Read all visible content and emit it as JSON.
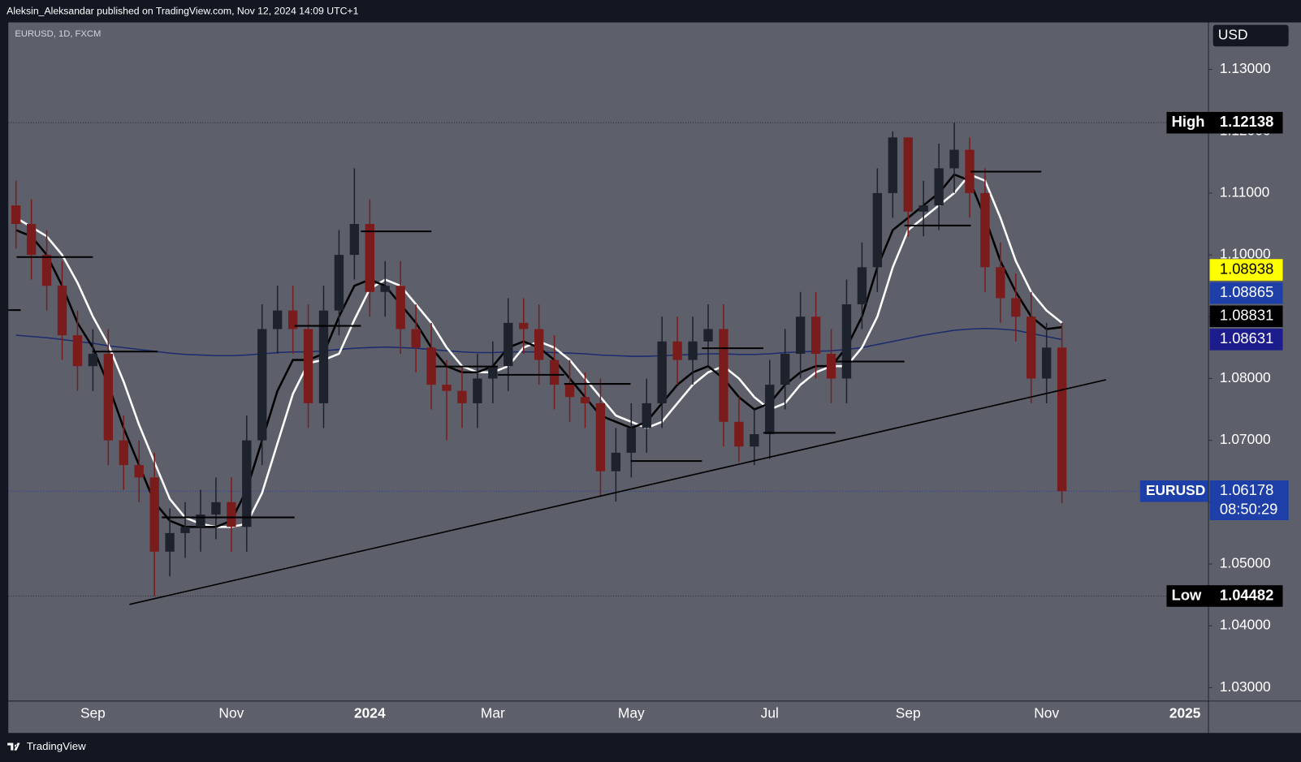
{
  "header": "Aleksin_Aleksandar published on TradingView.com, Nov 12, 2024 14:09 UTC+1",
  "footer": "TradingView",
  "chart_data": {
    "type": "candlestick",
    "symbol": "EURUSD, 1D, FXCM",
    "currency": "USD",
    "up_color": "#1e222d",
    "down_color": "#7a1c1c",
    "categories": [
      null,
      null,
      null,
      null,
      null,
      "Sep",
      null,
      null,
      null,
      null,
      null,
      null,
      null,
      null,
      "Nov",
      null,
      null,
      null,
      null,
      null,
      null,
      null,
      null,
      "2024",
      null,
      null,
      null,
      null,
      null,
      null,
      null,
      "Mar",
      null,
      null,
      null,
      null,
      null,
      null,
      null,
      null,
      "May",
      null,
      null,
      null,
      null,
      null,
      null,
      null,
      null,
      "Jul",
      null,
      null,
      null,
      null,
      null,
      null,
      null,
      null,
      "Sep",
      null,
      null,
      null,
      null,
      null,
      null,
      null,
      null,
      "Nov",
      null,
      null,
      null,
      null,
      null,
      null,
      null,
      null,
      "2025",
      null
    ],
    "open": [
      1.108,
      1.105,
      1.1,
      1.095,
      1.087,
      1.082,
      1.084,
      1.07,
      1.066,
      1.064,
      1.052,
      1.055,
      1.056,
      1.058,
      1.06,
      1.056,
      1.07,
      1.088,
      1.091,
      1.088,
      1.076,
      1.091,
      1.1,
      1.105,
      1.094,
      1.095,
      1.088,
      1.085,
      1.079,
      1.078,
      1.076,
      1.08,
      1.082,
      1.089,
      1.088,
      1.083,
      1.079,
      1.077,
      1.076,
      1.065,
      1.068,
      1.072,
      1.076,
      1.086,
      1.083,
      1.086,
      1.088,
      1.073,
      1.069,
      1.071,
      1.079,
      1.084,
      1.09,
      1.084,
      1.08,
      1.092,
      1.098,
      1.11,
      1.119,
      1.107,
      1.108,
      1.114,
      1.117,
      1.11,
      1.098,
      1.093,
      1.09,
      1.08,
      1.085,
      null,
      null,
      null,
      null,
      null,
      null,
      null,
      null,
      null
    ],
    "high": [
      1.112,
      1.109,
      1.104,
      1.099,
      1.091,
      1.088,
      1.088,
      1.074,
      1.07,
      1.068,
      1.059,
      1.06,
      1.062,
      1.064,
      1.064,
      1.074,
      1.092,
      1.095,
      1.095,
      1.092,
      1.095,
      1.104,
      1.114,
      1.109,
      1.099,
      1.099,
      1.092,
      1.089,
      1.083,
      1.082,
      1.084,
      1.086,
      1.093,
      1.093,
      1.092,
      1.087,
      1.083,
      1.081,
      1.08,
      1.072,
      1.076,
      1.08,
      1.09,
      1.09,
      1.09,
      1.092,
      1.092,
      1.077,
      1.075,
      1.083,
      1.088,
      1.094,
      1.094,
      1.088,
      1.096,
      1.102,
      1.114,
      1.12,
      1.118,
      1.112,
      1.118,
      1.12138,
      1.119,
      1.114,
      1.102,
      1.097,
      1.094,
      1.089,
      1.089,
      null,
      null,
      null,
      null,
      null,
      null,
      null,
      null,
      null
    ],
    "low": [
      1.101,
      1.096,
      1.091,
      1.083,
      1.078,
      1.078,
      1.066,
      1.062,
      1.06,
      1.04482,
      1.048,
      1.051,
      1.052,
      1.054,
      1.052,
      1.052,
      1.066,
      1.084,
      1.084,
      1.072,
      1.072,
      1.087,
      1.096,
      1.09,
      1.09,
      1.084,
      1.081,
      1.075,
      1.07,
      1.072,
      1.072,
      1.076,
      1.078,
      1.084,
      1.079,
      1.075,
      1.073,
      1.072,
      1.061,
      1.0601,
      1.064,
      1.068,
      1.072,
      1.079,
      1.079,
      1.082,
      1.069,
      1.0665,
      1.066,
      1.067,
      1.075,
      1.08,
      1.08,
      1.076,
      1.076,
      1.088,
      1.094,
      1.106,
      1.103,
      1.103,
      1.104,
      1.11,
      1.106,
      1.094,
      1.089,
      1.086,
      1.076,
      1.076,
      1.0598,
      null,
      null,
      null,
      null,
      null,
      null,
      null,
      null,
      null
    ],
    "close": [
      1.105,
      1.1,
      1.095,
      1.087,
      1.082,
      1.084,
      1.07,
      1.066,
      1.064,
      1.052,
      1.055,
      1.056,
      1.058,
      1.06,
      1.056,
      1.07,
      1.088,
      1.091,
      1.088,
      1.076,
      1.091,
      1.1,
      1.105,
      1.094,
      1.095,
      1.088,
      1.085,
      1.079,
      1.078,
      1.076,
      1.08,
      1.082,
      1.089,
      1.088,
      1.083,
      1.079,
      1.077,
      1.076,
      1.065,
      1.068,
      1.072,
      1.076,
      1.086,
      1.083,
      1.086,
      1.088,
      1.073,
      1.069,
      1.071,
      1.079,
      1.084,
      1.09,
      1.084,
      1.08,
      1.092,
      1.098,
      1.11,
      1.119,
      1.107,
      1.108,
      1.114,
      1.117,
      1.11,
      1.098,
      1.093,
      1.09,
      1.08,
      1.085,
      1.06178,
      null,
      null,
      null,
      null,
      null,
      null,
      null,
      null,
      null
    ],
    "moving_averages": [
      {
        "color": "#1c2a6e",
        "values": [
          1.087,
          1.0868,
          1.0866,
          1.0863,
          1.086,
          1.0857,
          1.0853,
          1.085,
          1.0847,
          1.0844,
          1.0841,
          1.0839,
          1.0838,
          1.0837,
          1.0837,
          1.0838,
          1.084,
          1.0842,
          1.0843,
          1.0843,
          1.0845,
          1.0847,
          1.0849,
          1.085,
          1.0851,
          1.085,
          1.0849,
          1.0847,
          1.0845,
          1.0843,
          1.0842,
          1.0842,
          1.0843,
          1.0843,
          1.0843,
          1.0842,
          1.0841,
          1.084,
          1.0838,
          1.0837,
          1.0836,
          1.0836,
          1.0837,
          1.0838,
          1.0839,
          1.084,
          1.084,
          1.0839,
          1.0839,
          1.084,
          1.0842,
          1.0843,
          1.0844,
          1.0845,
          1.0847,
          1.085,
          1.0855,
          1.086,
          1.0865,
          1.087,
          1.0874,
          1.0878,
          1.088,
          1.0881,
          1.088,
          1.0878,
          1.0873,
          1.0868,
          1.0863,
          null,
          null,
          null,
          null,
          null,
          null,
          null,
          null,
          null
        ]
      },
      {
        "color": "#ffffff",
        "values": [
          1.106,
          1.1045,
          1.103,
          1.1,
          1.0955,
          1.09,
          1.0855,
          1.0795,
          1.0725,
          1.0665,
          1.0605,
          1.0575,
          1.0565,
          1.056,
          1.056,
          1.0565,
          1.0615,
          1.0695,
          1.0775,
          1.0825,
          1.083,
          1.084,
          1.0895,
          1.0945,
          1.096,
          1.095,
          1.092,
          1.089,
          1.085,
          1.082,
          1.081,
          1.081,
          1.082,
          1.085,
          1.086,
          1.085,
          1.083,
          1.08,
          1.077,
          1.074,
          1.073,
          1.072,
          1.073,
          1.076,
          1.079,
          1.081,
          1.082,
          1.08,
          1.077,
          1.075,
          1.076,
          1.079,
          1.081,
          1.082,
          1.082,
          1.085,
          1.09,
          1.098,
          1.104,
          1.106,
          1.108,
          1.11,
          1.113,
          1.112,
          1.106,
          1.099,
          1.094,
          1.091,
          1.089,
          null,
          null,
          null,
          null,
          null,
          null,
          null,
          null,
          null
        ]
      },
      {
        "color": "#000000",
        "values": [
          1.104,
          1.103,
          1.1,
          1.095,
          1.089,
          1.085,
          1.079,
          1.072,
          1.066,
          1.06,
          1.057,
          1.056,
          1.056,
          1.056,
          1.057,
          1.062,
          1.07,
          1.078,
          1.083,
          1.083,
          1.084,
          1.09,
          1.095,
          1.096,
          1.095,
          1.092,
          1.089,
          1.085,
          1.082,
          1.081,
          1.081,
          1.082,
          1.085,
          1.086,
          1.085,
          1.083,
          1.08,
          1.077,
          1.074,
          1.073,
          1.072,
          1.073,
          1.076,
          1.079,
          1.081,
          1.082,
          1.08,
          1.077,
          1.075,
          1.076,
          1.079,
          1.081,
          1.082,
          1.082,
          1.085,
          1.09,
          1.098,
          1.104,
          1.106,
          1.108,
          1.11,
          1.113,
          1.112,
          1.106,
          1.099,
          1.094,
          1.09,
          1.088,
          1.0883,
          null,
          null,
          null,
          null,
          null,
          null,
          null,
          null,
          null
        ]
      }
    ],
    "ylim": [
      1.0279,
      1.1376
    ],
    "yticks": [
      {
        "value": 1.03,
        "label": "1.03000"
      },
      {
        "value": 1.04,
        "label": "1.04000"
      },
      {
        "value": 1.05,
        "label": "1.05000"
      },
      {
        "value": 1.06,
        "label": "1.06000"
      },
      {
        "value": 1.07,
        "label": "1.07000"
      },
      {
        "value": 1.08,
        "label": "1.08000"
      },
      {
        "value": 1.09,
        "label": "1.09000"
      },
      {
        "value": 1.1,
        "label": "1.10000"
      },
      {
        "value": 1.11,
        "label": "1.11000"
      },
      {
        "value": 1.12,
        "label": "1.12000"
      },
      {
        "value": 1.13,
        "label": "1.13000"
      }
    ],
    "high_marker": {
      "label": "High",
      "value": 1.12138
    },
    "low_marker": {
      "label": "Low",
      "value": 1.04482
    },
    "last_price": {
      "name": "EURUSD",
      "value": 1.06178,
      "countdown": "08:50:29",
      "color": "#1e3fa8"
    },
    "indicator_labels": [
      {
        "value": 1.08938,
        "color": "#ffff00",
        "text_color": "#000000"
      },
      {
        "value": 1.08865,
        "color": "#1e3fa8",
        "text_color": "#ffffff"
      },
      {
        "value": 1.08831,
        "color": "#000000",
        "text_color": "#ffffff"
      },
      {
        "value": 1.08631,
        "color": "#1c1c8c",
        "text_color": "#ffffff"
      }
    ]
  }
}
